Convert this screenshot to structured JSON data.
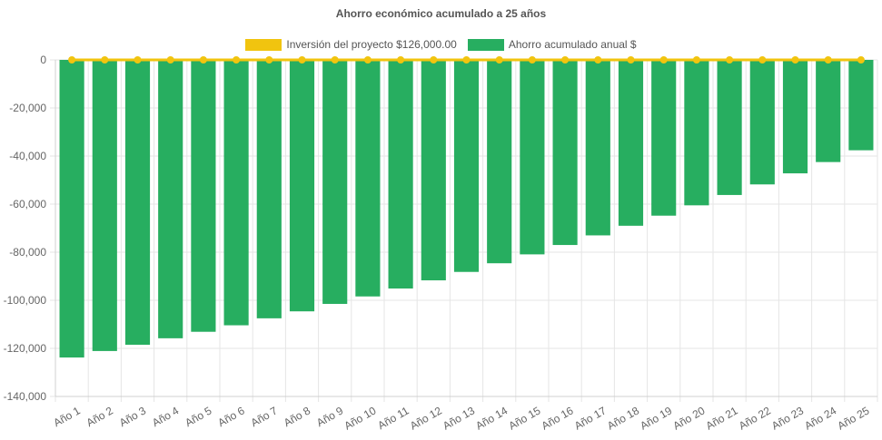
{
  "chart_data": {
    "type": "bar",
    "title": "Ahorro económico acumulado a 25 años",
    "categories": [
      "Año 1",
      "Año 2",
      "Año 3",
      "Año 4",
      "Año 5",
      "Año 6",
      "Año 7",
      "Año 8",
      "Año 9",
      "Año 10",
      "Año 11",
      "Año 12",
      "Año 13",
      "Año 14",
      "Año 15",
      "Año 16",
      "Año 17",
      "Año 18",
      "Año 19",
      "Año 20",
      "Año 21",
      "Año 22",
      "Año 23",
      "Año 24",
      "Año 25"
    ],
    "series": [
      {
        "name": "Inversión del proyecto $126,000.00",
        "type": "line",
        "color": "#f1c40f",
        "values": [
          0,
          0,
          0,
          0,
          0,
          0,
          0,
          0,
          0,
          0,
          0,
          0,
          0,
          0,
          0,
          0,
          0,
          0,
          0,
          0,
          0,
          0,
          0,
          0,
          0
        ]
      },
      {
        "name": "Ahorro acumulado anual $",
        "type": "bar",
        "color": "#27ae60",
        "values": [
          -123800,
          -121100,
          -118500,
          -115800,
          -113100,
          -110400,
          -107500,
          -104600,
          -101500,
          -98400,
          -95100,
          -91700,
          -88200,
          -84600,
          -80900,
          -77000,
          -73000,
          -69000,
          -64800,
          -60500,
          -56200,
          -51800,
          -47200,
          -42500,
          -37600
        ]
      }
    ],
    "ylim": [
      -140000,
      0
    ],
    "yticks": [
      0,
      -20000,
      -40000,
      -60000,
      -80000,
      -100000,
      -120000,
      -140000
    ],
    "ytick_labels": [
      "0",
      "-20,000",
      "-40,000",
      "-60,000",
      "-80,000",
      "-100,000",
      "-120,000",
      "-140,000"
    ],
    "grid": true,
    "legend_position": "top-center"
  }
}
